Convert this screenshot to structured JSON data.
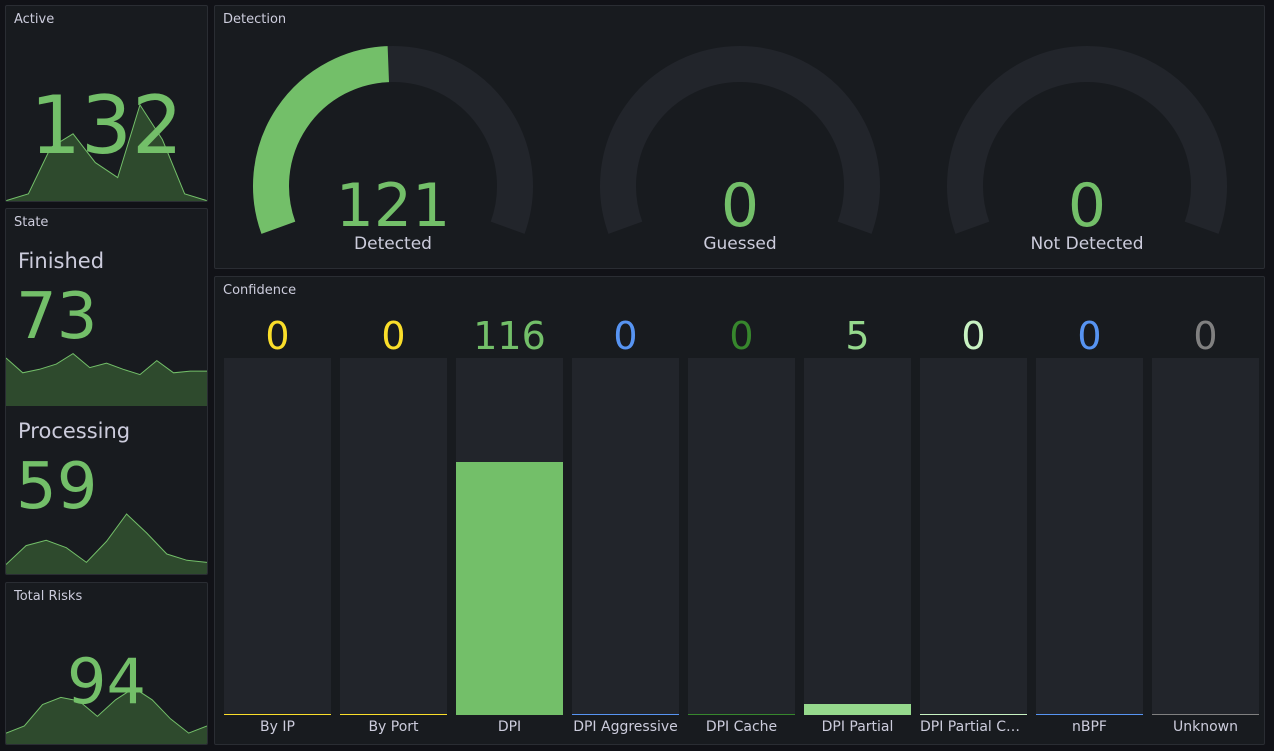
{
  "active": {
    "title": "Active",
    "value": "132",
    "spark": [
      2,
      8,
      48,
      60,
      35,
      22,
      85,
      55,
      8,
      2
    ]
  },
  "state": {
    "title": "State",
    "finished": {
      "label": "Finished",
      "value": "73",
      "spark": [
        55,
        38,
        42,
        48,
        60,
        44,
        49,
        42,
        36,
        52,
        38,
        40,
        40
      ]
    },
    "processing": {
      "label": "Processing",
      "value": "59",
      "spark": [
        10,
        28,
        33,
        26,
        12,
        32,
        58,
        40,
        20,
        14,
        12
      ]
    }
  },
  "total_risks": {
    "title": "Total Risks",
    "value": "94",
    "spark": [
      10,
      16,
      34,
      40,
      37,
      24,
      38,
      48,
      38,
      22,
      10,
      16
    ]
  },
  "detection": {
    "title": "Detection",
    "gauges": [
      {
        "value": "121",
        "label": "Detected",
        "fraction": 0.49
      },
      {
        "value": "0",
        "label": "Guessed",
        "fraction": 0
      },
      {
        "value": "0",
        "label": "Not Detected",
        "fraction": 0
      }
    ],
    "colors": {
      "fill": "#73bf69",
      "track": "#22252b"
    }
  },
  "confidence": {
    "title": "Confidence",
    "bars": [
      {
        "label": "By IP",
        "value": "0",
        "fraction": 0,
        "color": "#fade2a"
      },
      {
        "label": "By Port",
        "value": "0",
        "fraction": 0,
        "color": "#fade2a"
      },
      {
        "label": "DPI",
        "value": "116",
        "fraction": 0.71,
        "color": "#73bf69"
      },
      {
        "label": "DPI Aggressive",
        "value": "0",
        "fraction": 0,
        "color": "#5794f2"
      },
      {
        "label": "DPI Cache",
        "value": "0",
        "fraction": 0,
        "color": "#37872d"
      },
      {
        "label": "DPI Partial",
        "value": "5",
        "fraction": 0.03,
        "color": "#96d98d"
      },
      {
        "label": "DPI Partial Ca...",
        "value": "0",
        "fraction": 0,
        "color": "#c8f2c2"
      },
      {
        "label": "nBPF",
        "value": "0",
        "fraction": 0,
        "color": "#5794f2"
      },
      {
        "label": "Unknown",
        "value": "0",
        "fraction": 0,
        "color": "#808080"
      }
    ]
  },
  "colors": {
    "green": "#73bf69",
    "spark_fill": "#2e4a2d",
    "background": "#111217",
    "panel": "#181b1f"
  }
}
